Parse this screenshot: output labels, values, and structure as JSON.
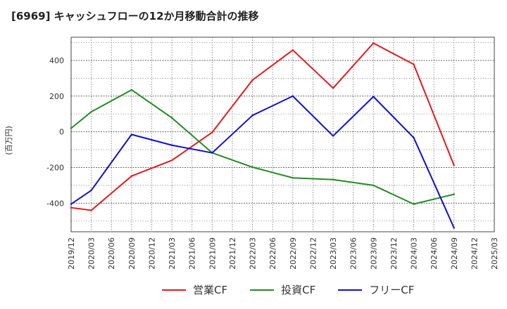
{
  "chart_data": {
    "type": "line",
    "title": "[6969]  キャッシュフローの12か月移動合計の推移",
    "ylabel": "(百万円)",
    "xlabel": "",
    "ylim": [
      -560,
      530
    ],
    "yticks": [
      400,
      200,
      0,
      -200,
      -400
    ],
    "categories": [
      "2019/12",
      "2020/03",
      "2020/06",
      "2020/09",
      "2020/12",
      "2021/03",
      "2021/06",
      "2021/09",
      "2021/12",
      "2022/03",
      "2022/06",
      "2022/09",
      "2022/12",
      "2023/03",
      "2023/06",
      "2023/09",
      "2023/12",
      "2024/03",
      "2024/06",
      "2024/09",
      "2024/12",
      "2025/03"
    ],
    "grid": true,
    "legend_position": "bottom",
    "series": [
      {
        "name": "営業CF",
        "color": "#e31a1c",
        "values": [
          -425,
          -440,
          null,
          -248,
          null,
          -160,
          null,
          -3,
          null,
          290,
          null,
          458,
          null,
          245,
          null,
          497,
          null,
          378,
          null,
          -188,
          null,
          null
        ]
      },
      {
        "name": "投資CF",
        "color": "#238b23",
        "values": [
          20,
          112,
          null,
          235,
          null,
          78,
          null,
          -118,
          null,
          -198,
          null,
          -258,
          null,
          -268,
          null,
          -300,
          null,
          -405,
          null,
          -350,
          null,
          null
        ]
      },
      {
        "name": "フリーCF",
        "color": "#1010d0",
        "values": [
          -405,
          -328,
          null,
          -15,
          null,
          -75,
          null,
          -118,
          null,
          92,
          null,
          200,
          null,
          -23,
          null,
          197,
          null,
          -33,
          null,
          -538,
          null,
          null
        ]
      }
    ]
  }
}
